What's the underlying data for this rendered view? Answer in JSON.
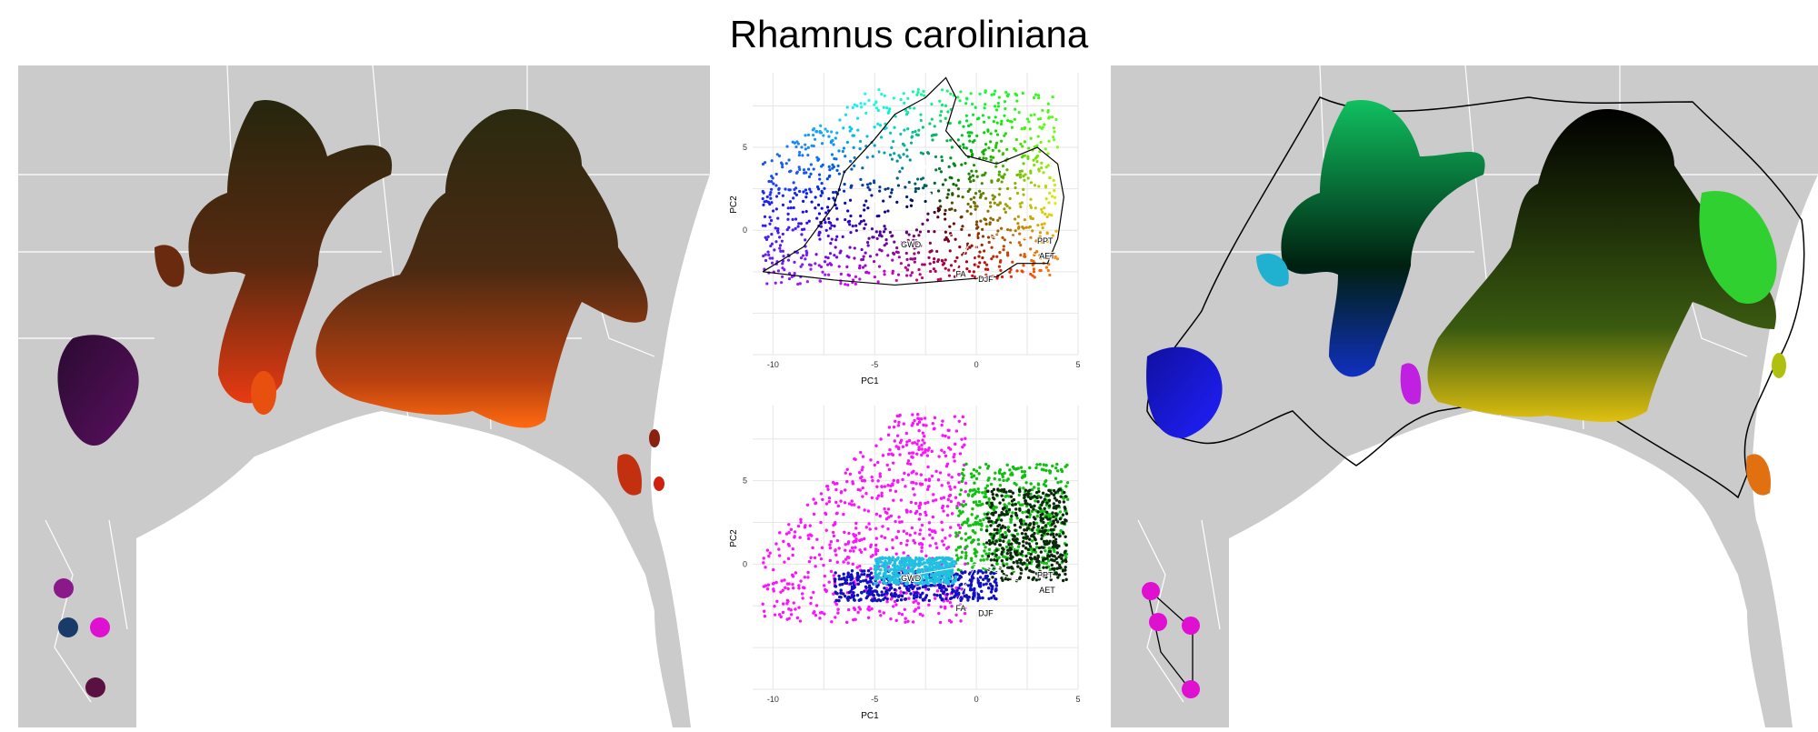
{
  "title": "Rhamnus caroliniana",
  "colors": {
    "land": "#cbcbcb",
    "ocean": "#ffffff",
    "boundary": "#ffffff",
    "hull": "#000000"
  },
  "chart_data": [
    {
      "type": "map",
      "panel": "left-map",
      "description_colors": [
        "#2a2a10",
        "#6a2a10",
        "#d43a10",
        "#ff6a10",
        "#3a1040",
        "#9a2080"
      ]
    },
    {
      "type": "scatter",
      "panel": "pca-top",
      "xlabel": "PC1",
      "ylabel": "PC2",
      "xticks": [
        -10,
        -5,
        0,
        5
      ],
      "yticks": [
        5,
        0
      ],
      "xlim": [
        -11,
        5
      ],
      "ylim": [
        -7.5,
        9.5
      ],
      "grid": true,
      "loadings": [
        {
          "label": "GWD",
          "x": -3.8,
          "y": -0.8
        },
        {
          "label": "PPT",
          "x": 2.9,
          "y": -0.6
        },
        {
          "label": "AET",
          "x": 3.0,
          "y": -1.5
        },
        {
          "label": "DJF",
          "x": 0.0,
          "y": -2.9
        },
        {
          "label": "FA",
          "x": -1.1,
          "y": -2.6
        }
      ]
    },
    {
      "type": "scatter",
      "panel": "pca-bottom",
      "xlabel": "PC1",
      "ylabel": "PC2",
      "xticks": [
        -10,
        -5,
        0,
        5
      ],
      "yticks": [
        5,
        0
      ],
      "xlim": [
        -11,
        5
      ],
      "ylim": [
        -7.5,
        9.5
      ],
      "grid": true,
      "clusters": [
        {
          "color": "#ff10ff",
          "cx": -4.5,
          "cy": 2.5
        },
        {
          "color": "#10c010",
          "cx": 1.5,
          "cy": 2.5
        },
        {
          "color": "#0a2a0a",
          "cx": 2.5,
          "cy": 1.5
        },
        {
          "color": "#1010c0",
          "cx": -3.0,
          "cy": -1.5
        },
        {
          "color": "#20c0e0",
          "cx": -2.5,
          "cy": -0.5
        }
      ],
      "loadings": [
        {
          "label": "GWD",
          "x": -3.8,
          "y": -0.8
        },
        {
          "label": "PPT",
          "x": 2.9,
          "y": -0.6
        },
        {
          "label": "AET",
          "x": 3.0,
          "y": -1.5
        },
        {
          "label": "DJF",
          "x": 0.0,
          "y": -2.9
        },
        {
          "label": "FA",
          "x": -1.1,
          "y": -2.6
        }
      ]
    },
    {
      "type": "map",
      "panel": "right-map",
      "description_colors": [
        "#000000",
        "#10c010",
        "#1010c0",
        "#ff10ff",
        "#c0c010",
        "#ff8000",
        "#20c0e0"
      ]
    }
  ]
}
